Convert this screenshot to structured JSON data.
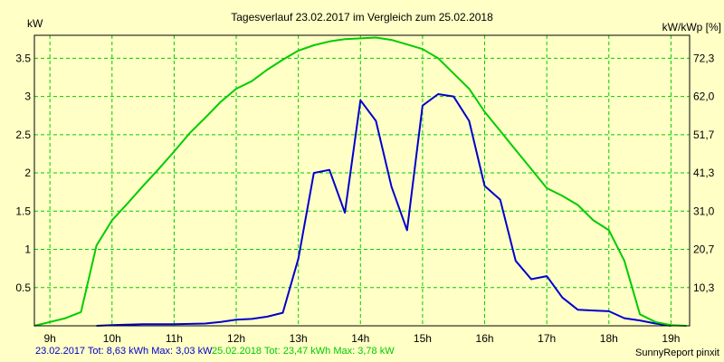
{
  "chart_data": {
    "type": "line",
    "title": "Tagesverlauf 23.02.2017 im Vergleich zum 25.02.2018",
    "ylabel_left": "kW",
    "ylabel_right": "kW/kWp [%]",
    "xlim": [
      8.75,
      19.3
    ],
    "ylim": [
      0,
      3.8
    ],
    "x_ticks": [
      9,
      10,
      11,
      12,
      13,
      14,
      15,
      16,
      17,
      18,
      19
    ],
    "x_tick_labels": [
      "9h",
      "10h",
      "11h",
      "12h",
      "13h",
      "14h",
      "15h",
      "16h",
      "17h",
      "18h",
      "19h"
    ],
    "y_ticks": [
      0.5,
      1,
      1.5,
      2,
      2.5,
      3,
      3.5
    ],
    "y_tick_labels": [
      "0.5",
      "1",
      "1.5",
      "2",
      "2.5",
      "3",
      "3.5"
    ],
    "y2_ticks": [
      0.5,
      1.0,
      1.5,
      2.0,
      2.5,
      3.0,
      3.5
    ],
    "y2_tick_labels": [
      "10,3",
      "20,7",
      "31,0",
      "41,3",
      "51,7",
      "62,0",
      "72,3"
    ],
    "grid": true,
    "series": [
      {
        "name": "23.02.2017",
        "color": "#0000CC",
        "x": [
          9.75,
          10.0,
          10.5,
          11.0,
          11.5,
          11.75,
          12.0,
          12.25,
          12.5,
          12.75,
          13.0,
          13.25,
          13.5,
          13.75,
          14.0,
          14.25,
          14.5,
          14.75,
          15.0,
          15.25,
          15.5,
          15.75,
          16.0,
          16.25,
          16.5,
          16.75,
          17.0,
          17.25,
          17.5,
          17.75,
          18.0,
          18.25,
          18.5,
          18.75,
          19.0
        ],
        "values": [
          0.0,
          0.01,
          0.02,
          0.02,
          0.03,
          0.05,
          0.08,
          0.09,
          0.12,
          0.17,
          0.88,
          2.0,
          2.04,
          1.48,
          2.95,
          2.68,
          1.82,
          1.25,
          2.88,
          3.03,
          3.0,
          2.68,
          1.83,
          1.65,
          0.85,
          0.61,
          0.65,
          0.37,
          0.21,
          0.2,
          0.19,
          0.1,
          0.07,
          0.03,
          0.0
        ]
      },
      {
        "name": "25.02.2018",
        "color": "#00CC00",
        "x": [
          8.75,
          9.0,
          9.25,
          9.5,
          9.75,
          10.0,
          10.25,
          10.5,
          10.75,
          11.0,
          11.25,
          11.5,
          11.75,
          12.0,
          12.25,
          12.5,
          12.75,
          13.0,
          13.25,
          13.5,
          13.75,
          14.0,
          14.25,
          14.5,
          14.75,
          15.0,
          15.25,
          15.5,
          15.75,
          16.0,
          16.25,
          16.5,
          16.75,
          17.0,
          17.25,
          17.5,
          17.75,
          18.0,
          18.25,
          18.5,
          18.75,
          19.0,
          19.25
        ],
        "values": [
          0.0,
          0.05,
          0.1,
          0.18,
          1.05,
          1.38,
          1.6,
          1.83,
          2.05,
          2.28,
          2.52,
          2.72,
          2.93,
          3.1,
          3.2,
          3.35,
          3.48,
          3.6,
          3.67,
          3.72,
          3.75,
          3.76,
          3.77,
          3.74,
          3.68,
          3.62,
          3.5,
          3.3,
          3.1,
          2.8,
          2.55,
          2.3,
          2.05,
          1.8,
          1.7,
          1.58,
          1.38,
          1.25,
          0.85,
          0.15,
          0.05,
          0.01,
          0.0
        ]
      }
    ]
  },
  "footer": {
    "s1_text": "23.02.2017 Tot: 8,63 kWh Max: 3,03 kW",
    "s2_text": "25.02.2018 Tot: 23,47 kWh Max: 3,78 kW",
    "credit": "SunnyReport pinxit"
  }
}
